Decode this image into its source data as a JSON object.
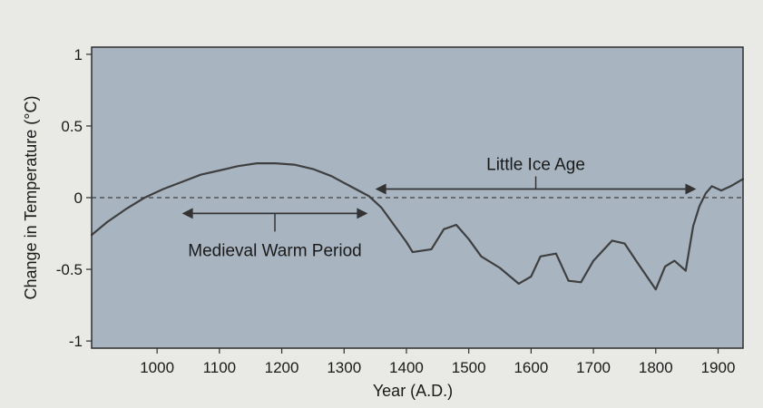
{
  "chart_data": {
    "type": "line",
    "title": "",
    "xlabel": "Year (A.D.)",
    "ylabel": "Change in Temperature (°C)",
    "xlim": [
      895,
      1940
    ],
    "ylim": [
      -1.05,
      1.05
    ],
    "xticks": [
      1000,
      1100,
      1200,
      1300,
      1400,
      1500,
      1600,
      1700,
      1800,
      1900
    ],
    "xtick_labels": [
      "1000",
      "1100",
      "1200",
      "1300",
      "1400",
      "1500",
      "1600",
      "1700",
      "1800",
      "1900"
    ],
    "yticks": [
      1,
      0.5,
      0,
      -0.5,
      -1
    ],
    "ytick_labels": [
      "1",
      "0.5",
      "0",
      "-0.5",
      "-1"
    ],
    "reference_line": {
      "y": 0,
      "style": "dashed"
    },
    "series": [
      {
        "x": [
          895,
          920,
          950,
          980,
          1010,
          1040,
          1070,
          1100,
          1130,
          1160,
          1190,
          1220,
          1250,
          1280,
          1310,
          1340,
          1360,
          1380,
          1400,
          1410,
          1440,
          1460,
          1480,
          1500,
          1520,
          1550,
          1580,
          1600,
          1615,
          1640,
          1660,
          1680,
          1700,
          1730,
          1750,
          1770,
          1800,
          1815,
          1830,
          1848,
          1860,
          1870,
          1880,
          1890,
          1905,
          1920,
          1940
        ],
        "y": [
          -0.26,
          -0.17,
          -0.08,
          0.0,
          0.06,
          0.11,
          0.16,
          0.19,
          0.22,
          0.24,
          0.24,
          0.23,
          0.2,
          0.15,
          0.08,
          0.01,
          -0.07,
          -0.19,
          -0.31,
          -0.38,
          -0.36,
          -0.22,
          -0.19,
          -0.29,
          -0.41,
          -0.49,
          -0.6,
          -0.55,
          -0.41,
          -0.39,
          -0.58,
          -0.59,
          -0.44,
          -0.3,
          -0.32,
          -0.45,
          -0.64,
          -0.48,
          -0.44,
          -0.51,
          -0.2,
          -0.06,
          0.03,
          0.08,
          0.05,
          0.08,
          0.13
        ]
      }
    ],
    "annotations": [
      {
        "text": "Little Ice Age",
        "x_from": 1350,
        "x_to": 1865,
        "y": 0.06
      },
      {
        "text": "Medieval Warm Period",
        "x_from": 1040,
        "x_to": 1338,
        "y": -0.11
      }
    ],
    "colors": {
      "background": "#e9e9e5",
      "plot_area": "#a8b5c1",
      "line": "#3f3f3f",
      "text": "#1a1a1a"
    }
  }
}
